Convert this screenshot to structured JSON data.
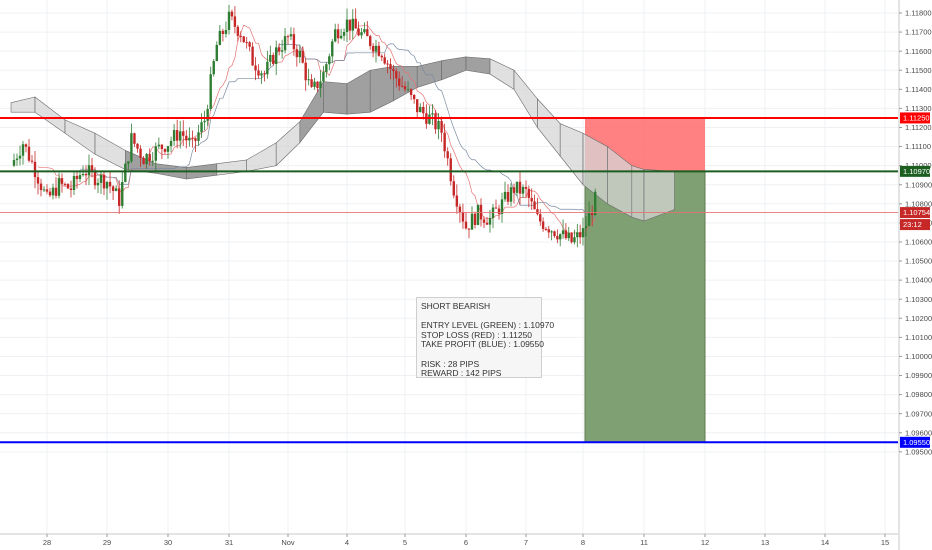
{
  "note": {
    "title": "SHORT BEARISH",
    "entry": "ENTRY LEVEL (GREEN) : 1.10970",
    "stop": "STOP LOSS (RED) : 1.11250",
    "target": "TAKE PROFIT (BLUE) : 1.09550",
    "risk": "RISK : 28 PIPS",
    "reward": "REWARD : 142 PIPS"
  },
  "price_tags": {
    "stop_loss": "1.11250",
    "entry": "1.10970",
    "last_price": "1.10754",
    "countdown": "23:12",
    "take_profit": "1.09550"
  },
  "colors": {
    "stop_line": "#ff0000",
    "entry_line": "#1b5e20",
    "target_line": "#0000ff",
    "risk_zone": "#ff6b6b",
    "reward_zone": "#7fa072",
    "cloud_bearish": "#8f8f8f",
    "cloud_bullish": "#d6d6d6",
    "candle_up": "#2e7d32",
    "candle_down": "#c62828",
    "last_price_tag": "#c62828"
  },
  "chart_data": {
    "type": "candlestick",
    "title": "",
    "xlabel": "",
    "ylabel": "",
    "ylim": [
      1.095,
      1.119
    ],
    "x_ticks": [
      "28",
      "29",
      "30",
      "31",
      "Nov",
      "4",
      "5",
      "6",
      "7",
      "8",
      "11",
      "12",
      "13",
      "14",
      "15"
    ],
    "y_ticks": [
      "1.11800",
      "1.11700",
      "1.11600",
      "1.11500",
      "1.11400",
      "1.11300",
      "1.11200",
      "1.11100",
      "1.11000",
      "1.10900",
      "1.10800",
      "1.10700",
      "1.10600",
      "1.10500",
      "1.10400",
      "1.10300",
      "1.10200",
      "1.10100",
      "1.10000",
      "1.09900",
      "1.09800",
      "1.09700",
      "1.09600",
      "1.09500"
    ],
    "levels": {
      "stop_loss": 1.1125,
      "entry": 1.1097,
      "take_profit": 1.0955,
      "last_price": 1.10754
    },
    "price_path": [
      [
        27.4,
        1.11
      ],
      [
        27.6,
        1.1112
      ],
      [
        27.8,
        1.1098
      ],
      [
        28.0,
        1.1082
      ],
      [
        28.2,
        1.109
      ],
      [
        28.4,
        1.1088
      ],
      [
        28.6,
        1.1098
      ],
      [
        28.8,
        1.1094
      ],
      [
        29.0,
        1.1092
      ],
      [
        29.2,
        1.1082
      ],
      [
        29.4,
        1.1114
      ],
      [
        29.6,
        1.1104
      ],
      [
        29.8,
        1.1108
      ],
      [
        30.0,
        1.1112
      ],
      [
        30.2,
        1.1118
      ],
      [
        30.4,
        1.111
      ],
      [
        30.6,
        1.1124
      ],
      [
        30.8,
        1.1163
      ],
      [
        31.0,
        1.1177
      ],
      [
        31.2,
        1.117
      ],
      [
        31.4,
        1.1155
      ],
      [
        31.6,
        1.1148
      ],
      [
        31.8,
        1.116
      ],
      [
        32.0,
        1.1167
      ],
      [
        32.2,
        1.1158
      ],
      [
        32.4,
        1.1138
      ],
      [
        32.6,
        1.1148
      ],
      [
        32.8,
        1.117
      ],
      [
        33.0,
        1.1175
      ],
      [
        33.2,
        1.117
      ],
      [
        33.4,
        1.1165
      ],
      [
        33.6,
        1.116
      ],
      [
        33.8,
        1.1148
      ],
      [
        34.0,
        1.114
      ],
      [
        34.2,
        1.113
      ],
      [
        34.4,
        1.1125
      ],
      [
        34.6,
        1.1118
      ],
      [
        34.8,
        1.1088
      ],
      [
        35.0,
        1.1068
      ],
      [
        35.2,
        1.1075
      ],
      [
        35.4,
        1.1072
      ],
      [
        35.6,
        1.108
      ],
      [
        35.8,
        1.1088
      ],
      [
        36.0,
        1.1086
      ],
      [
        36.2,
        1.1072
      ],
      [
        36.4,
        1.1068
      ],
      [
        36.6,
        1.1064
      ],
      [
        36.8,
        1.106
      ],
      [
        37.0,
        1.1065
      ],
      [
        37.2,
        1.1082
      ]
    ],
    "ichimoku_cloud": [
      [
        27.4,
        1.1128,
        1.1133
      ],
      [
        27.8,
        1.1128,
        1.1136
      ],
      [
        28.3,
        1.1117,
        1.1124
      ],
      [
        28.8,
        1.1106,
        1.1117
      ],
      [
        29.3,
        1.1098,
        1.1108
      ],
      [
        29.8,
        1.1096,
        1.1101
      ],
      [
        30.3,
        1.1093,
        1.1099
      ],
      [
        30.8,
        1.1095,
        1.1101
      ],
      [
        31.3,
        1.1097,
        1.1103
      ],
      [
        31.8,
        1.11,
        1.1112
      ],
      [
        32.2,
        1.1112,
        1.1123
      ],
      [
        32.6,
        1.1128,
        1.1144
      ],
      [
        33.0,
        1.1127,
        1.1143
      ],
      [
        33.4,
        1.1128,
        1.115
      ],
      [
        33.8,
        1.1134,
        1.1152
      ],
      [
        34.2,
        1.1141,
        1.1152
      ],
      [
        34.6,
        1.1145,
        1.1155
      ],
      [
        35.0,
        1.115,
        1.1157
      ],
      [
        35.4,
        1.1148,
        1.1156
      ],
      [
        35.8,
        1.114,
        1.115
      ],
      [
        36.2,
        1.112,
        1.1135
      ],
      [
        36.6,
        1.1105,
        1.1122
      ],
      [
        37.0,
        1.109,
        1.1117
      ],
      [
        37.4,
        1.108,
        1.111
      ],
      [
        37.8,
        1.1073,
        1.11
      ],
      [
        38.0,
        1.1071,
        1.1098
      ],
      [
        38.5,
        1.1077,
        1.1097
      ]
    ],
    "positions": {
      "risk_zone": {
        "from_day": 38.0,
        "to_day": 40.0,
        "low": 1.1097,
        "high": 1.1125
      },
      "reward_zone": {
        "from_day": 38.0,
        "to_day": 40.0,
        "low": 1.0955,
        "high": 1.1097
      }
    },
    "grid": true
  }
}
